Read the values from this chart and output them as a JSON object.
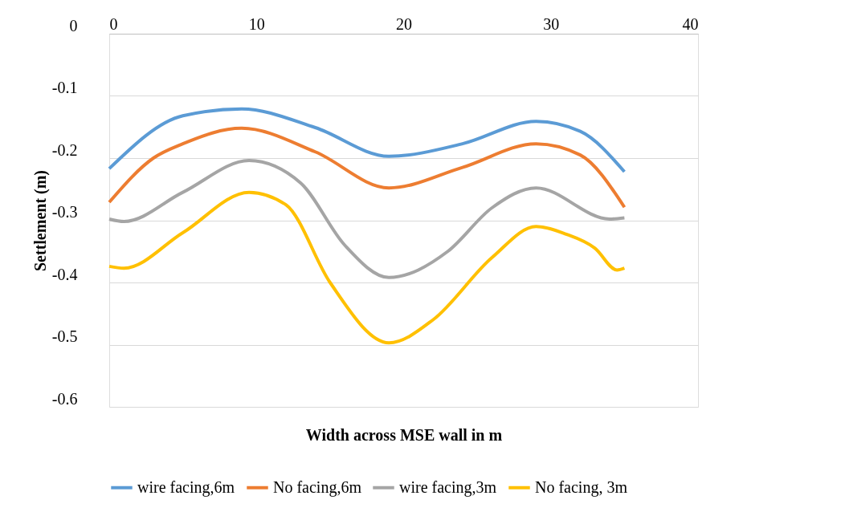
{
  "chart_data": {
    "type": "line",
    "xlabel": "Width across MSE wall in m",
    "ylabel": "Settlement (m)",
    "xlim": [
      0,
      40
    ],
    "xticks": [
      0,
      10,
      20,
      30,
      40
    ],
    "ylim": [
      -0.6,
      0
    ],
    "yticks": [
      0,
      -0.1,
      -0.2,
      -0.3,
      -0.4,
      -0.5,
      -0.6
    ],
    "grid": "y",
    "legend": "bottom",
    "marker": "none",
    "line_style": "solid",
    "series": [
      {
        "name": "wire facing,6m",
        "color": "#5b9bd5",
        "x": [
          0,
          5,
          9,
          14,
          19,
          24,
          29,
          32,
          35
        ],
        "values": [
          -0.217,
          -0.132,
          -0.121,
          -0.151,
          -0.197,
          -0.177,
          -0.141,
          -0.157,
          -0.222
        ]
      },
      {
        "name": "No facing,6m",
        "color": "#ed7d31",
        "x": [
          0,
          3,
          5,
          9,
          14,
          19,
          24,
          29,
          32,
          35
        ],
        "values": [
          -0.271,
          -0.2,
          -0.177,
          -0.152,
          -0.19,
          -0.248,
          -0.215,
          -0.177,
          -0.195,
          -0.279
        ]
      },
      {
        "name": "wire facing,3m",
        "color": "#a5a5a5",
        "x": [
          0,
          1,
          5,
          9.5,
          13,
          16,
          19,
          23,
          26,
          29,
          34,
          35
        ],
        "values": [
          -0.298,
          -0.302,
          -0.255,
          -0.204,
          -0.24,
          -0.34,
          -0.392,
          -0.35,
          -0.28,
          -0.248,
          -0.298,
          -0.296
        ]
      },
      {
        "name": "No facing, 3m",
        "color": "#ffc000",
        "x": [
          0,
          1,
          5,
          9.5,
          12,
          15,
          19,
          22,
          26,
          29,
          31,
          33,
          34.5,
          35
        ],
        "values": [
          -0.374,
          -0.377,
          -0.32,
          -0.255,
          -0.275,
          -0.4,
          -0.497,
          -0.46,
          -0.36,
          -0.31,
          -0.322,
          -0.345,
          -0.38,
          -0.377
        ]
      }
    ]
  }
}
